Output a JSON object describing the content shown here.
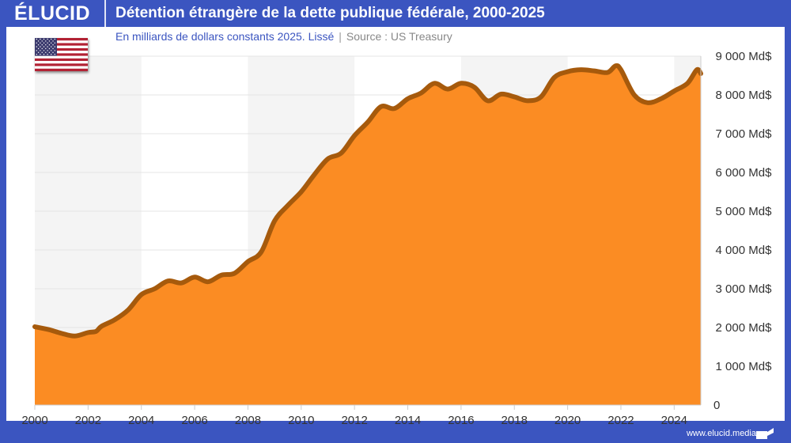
{
  "header": {
    "logo": "ÉLUCID",
    "title": "Détention étrangère de la dette publique fédérale, 2000-2025"
  },
  "subtitle": {
    "text": "En milliards de dollars constants 2025. Lissé",
    "separator": "|",
    "source": "Source : US Treasury"
  },
  "flag": "us-flag-icon",
  "footer": {
    "url": "www.elucid.media"
  },
  "colors": {
    "frame": "#3b55c0",
    "area": "#fb8c23",
    "line": "#a65a0c",
    "band": "#f4f4f4"
  },
  "chart_data": {
    "type": "area",
    "title": "Détention étrangère de la dette publique fédérale, 2000-2025",
    "xlabel": "",
    "ylabel": "",
    "xlim": [
      2000,
      2025
    ],
    "ylim": [
      0,
      9000
    ],
    "grid": true,
    "y_axis_position": "right",
    "x_ticks": [
      "2000",
      "2002",
      "2004",
      "2006",
      "2008",
      "2010",
      "2012",
      "2014",
      "2016",
      "2018",
      "2020",
      "2022",
      "2024"
    ],
    "y_ticks": [
      "0",
      "1 000 Md$",
      "2 000 Md$",
      "3 000 Md$",
      "4 000 Md$",
      "5 000 Md$",
      "6 000 Md$",
      "7 000 Md$",
      "8 000 Md$",
      "9 000 Md$"
    ],
    "x": [
      2000,
      2000.5,
      2001,
      2001.5,
      2002,
      2002.3,
      2002.5,
      2003,
      2003.5,
      2004,
      2004.5,
      2005,
      2005.5,
      2006,
      2006.5,
      2007,
      2007.5,
      2008,
      2008.5,
      2009,
      2009.5,
      2010,
      2010.5,
      2011,
      2011.5,
      2012,
      2012.5,
      2013,
      2013.5,
      2014,
      2014.5,
      2015,
      2015.5,
      2016,
      2016.5,
      2017,
      2017.5,
      2018,
      2018.5,
      2019,
      2019.5,
      2020,
      2020.5,
      2021,
      2021.5,
      2021.8,
      2022,
      2022.5,
      2023,
      2023.5,
      2024,
      2024.5,
      2024.85,
      2025
    ],
    "y": [
      2020,
      1950,
      1850,
      1780,
      1870,
      1900,
      2030,
      2200,
      2450,
      2850,
      3000,
      3200,
      3150,
      3300,
      3180,
      3350,
      3400,
      3700,
      3950,
      4750,
      5150,
      5500,
      5950,
      6350,
      6500,
      6950,
      7300,
      7700,
      7650,
      7900,
      8050,
      8300,
      8150,
      8300,
      8200,
      7850,
      8020,
      7950,
      7850,
      7950,
      8450,
      8600,
      8650,
      8620,
      8580,
      8750,
      8650,
      8000,
      7800,
      7900,
      8100,
      8300,
      8650,
      8550
    ]
  }
}
